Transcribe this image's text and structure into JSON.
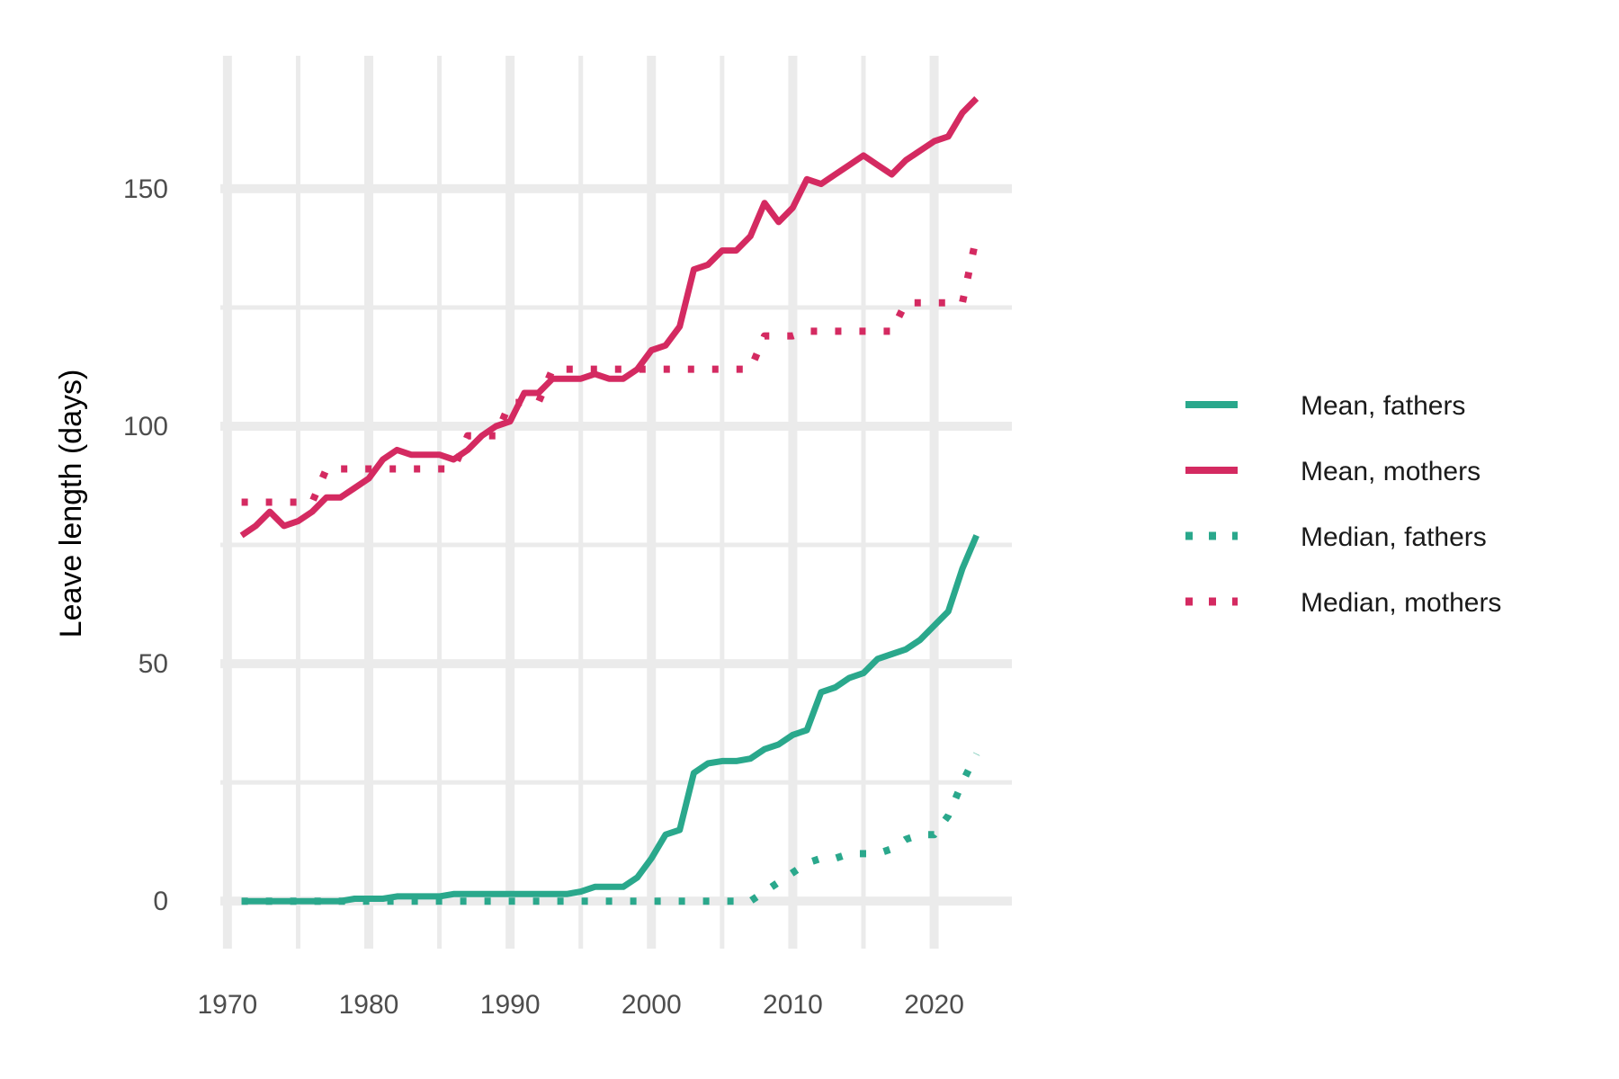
{
  "chart_data": {
    "type": "line",
    "title": "",
    "xlabel": "",
    "ylabel": "Leave length (days)",
    "xlim": [
      1969.5,
      2025.5
    ],
    "ylim": [
      -10,
      178
    ],
    "x_ticks": [
      1970,
      1980,
      1990,
      2000,
      2010,
      2020
    ],
    "y_ticks": [
      0,
      50,
      100,
      150
    ],
    "grid": true,
    "legend_position": "right",
    "series": [
      {
        "name": "Mean, fathers",
        "style": "solid",
        "color": "#2aa88c",
        "x": [
          1971,
          1972,
          1973,
          1974,
          1975,
          1976,
          1977,
          1978,
          1979,
          1980,
          1981,
          1982,
          1983,
          1984,
          1985,
          1986,
          1987,
          1988,
          1989,
          1990,
          1991,
          1992,
          1993,
          1994,
          1995,
          1996,
          1997,
          1998,
          1999,
          2000,
          2001,
          2002,
          2003,
          2004,
          2005,
          2006,
          2007,
          2008,
          2009,
          2010,
          2011,
          2012,
          2013,
          2014,
          2015,
          2016,
          2017,
          2018,
          2019,
          2020,
          2021,
          2022,
          2023
        ],
        "y": [
          0,
          0,
          0,
          0,
          0,
          0,
          0,
          0,
          0.5,
          0.5,
          0.5,
          1,
          1,
          1,
          1,
          1.5,
          1.5,
          1.5,
          1.5,
          1.5,
          1.5,
          1.5,
          1.5,
          1.5,
          2,
          3,
          3,
          3,
          5,
          9,
          14,
          15,
          27,
          29,
          29.5,
          29.5,
          30,
          32,
          33,
          35,
          36,
          44,
          45,
          47,
          48,
          51,
          52,
          53,
          55,
          58,
          61,
          70,
          77
        ]
      },
      {
        "name": "Mean, mothers",
        "style": "solid",
        "color": "#d42a61",
        "x": [
          1971,
          1972,
          1973,
          1974,
          1975,
          1976,
          1977,
          1978,
          1979,
          1980,
          1981,
          1982,
          1983,
          1984,
          1985,
          1986,
          1987,
          1988,
          1989,
          1990,
          1991,
          1992,
          1993,
          1994,
          1995,
          1996,
          1997,
          1998,
          1999,
          2000,
          2001,
          2002,
          2003,
          2004,
          2005,
          2006,
          2007,
          2008,
          2009,
          2010,
          2011,
          2012,
          2013,
          2014,
          2015,
          2016,
          2017,
          2018,
          2019,
          2020,
          2021,
          2022,
          2023
        ],
        "y": [
          77,
          79,
          82,
          79,
          80,
          82,
          85,
          85,
          87,
          89,
          93,
          95,
          94,
          94,
          94,
          93,
          95,
          98,
          100,
          101,
          107,
          107,
          110,
          110,
          110,
          111,
          110,
          110,
          112,
          116,
          117,
          121,
          133,
          134,
          137,
          137,
          140,
          147,
          143,
          146,
          152,
          151,
          153,
          155,
          157,
          155,
          153,
          156,
          158,
          160,
          161,
          166,
          169
        ]
      },
      {
        "name": "Median, fathers",
        "style": "dotted",
        "color": "#2aa88c",
        "x": [
          1971,
          1975,
          1980,
          1985,
          1990,
          1995,
          2000,
          2005,
          2007,
          2008,
          2009,
          2010,
          2011,
          2012,
          2013,
          2014,
          2015,
          2016,
          2017,
          2018,
          2019,
          2020,
          2021,
          2022,
          2023
        ],
        "y": [
          0,
          0,
          0,
          0,
          0,
          0,
          0,
          0,
          0,
          2,
          4,
          6,
          8,
          9,
          9,
          10,
          10,
          10,
          11,
          13,
          14,
          14,
          18,
          25,
          31
        ]
      },
      {
        "name": "Median, mothers",
        "style": "dotted",
        "color": "#d42a61",
        "x": [
          1971,
          1972,
          1973,
          1974,
          1975,
          1976,
          1977,
          1978,
          1979,
          1980,
          1981,
          1982,
          1983,
          1984,
          1985,
          1986,
          1987,
          1988,
          1989,
          1990,
          1991,
          1992,
          1993,
          1994,
          1995,
          1996,
          1997,
          1998,
          1999,
          2000,
          2001,
          2002,
          2003,
          2004,
          2005,
          2006,
          2007,
          2008,
          2009,
          2010,
          2011,
          2012,
          2013,
          2014,
          2015,
          2016,
          2017,
          2018,
          2019,
          2020,
          2021,
          2022,
          2023
        ],
        "y": [
          84,
          84,
          84,
          84,
          84,
          84,
          91,
          91,
          91,
          91,
          91,
          91,
          91,
          91,
          91,
          91,
          98,
          98,
          98,
          105,
          105,
          105,
          112,
          112,
          112,
          112,
          112,
          112,
          112,
          112,
          112,
          112,
          112,
          112,
          112,
          112,
          112,
          119,
          119,
          119,
          120,
          120,
          120,
          120,
          120,
          120,
          120,
          126,
          126,
          126,
          126,
          126,
          140
        ]
      }
    ]
  }
}
